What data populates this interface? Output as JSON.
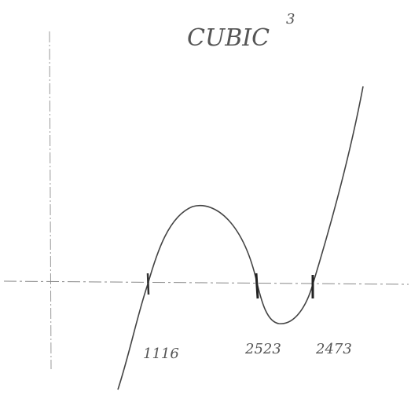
{
  "title": "CUBIC",
  "superscript": "3",
  "root_labels": [
    "1116",
    "2523",
    "2473"
  ]
}
